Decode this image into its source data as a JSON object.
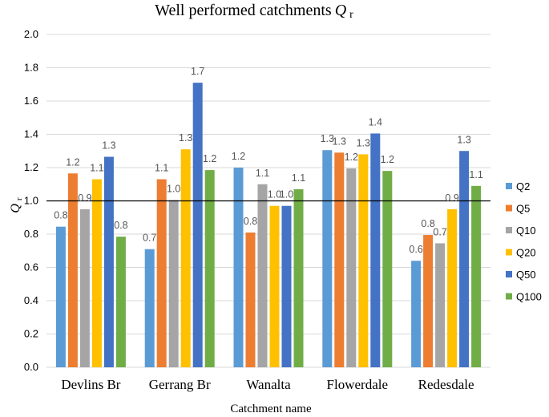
{
  "chart_data": {
    "type": "bar",
    "title": "Well performed catchments",
    "title_symbol": "Q",
    "title_symbol_sub": "r",
    "xlabel": "Catchment name",
    "ylabel": "Q",
    "ylabel_sub": "r",
    "ylim": [
      0,
      2.0
    ],
    "ytick_labels": [
      "0.0",
      "0.2",
      "0.4",
      "0.6",
      "0.8",
      "1.0",
      "1.2",
      "1.4",
      "1.6",
      "1.8",
      "2.0"
    ],
    "yticks": [
      0,
      0.2,
      0.4,
      0.6,
      0.8,
      1.0,
      1.2,
      1.4,
      1.6,
      1.8,
      2.0
    ],
    "reference_line": 1.0,
    "grid": true,
    "legend_position": "right",
    "categories": [
      "Devlins Br",
      "Gerrang Br",
      "Wanalta",
      "Flowerdale",
      "Redesdale"
    ],
    "series": [
      {
        "name": "Q2",
        "color": "#5b9bd5",
        "values": [
          0.845,
          0.71,
          1.2,
          1.305,
          0.64
        ],
        "labels": [
          "0.8",
          "0.7",
          "1.2",
          "1.3",
          "0.6"
        ]
      },
      {
        "name": "Q5",
        "color": "#ed7d31",
        "values": [
          1.165,
          1.13,
          0.81,
          1.29,
          0.795
        ],
        "labels": [
          "1.2",
          "1.1",
          "0.8",
          "1.3",
          "0.8"
        ]
      },
      {
        "name": "Q10",
        "color": "#a5a5a5",
        "values": [
          0.95,
          1.005,
          1.1,
          1.195,
          0.745
        ],
        "labels": [
          "0.9",
          "1.0",
          "1.1",
          "1.2",
          "0.7"
        ]
      },
      {
        "name": "Q20",
        "color": "#ffc000",
        "values": [
          1.13,
          1.31,
          0.97,
          1.28,
          0.95
        ],
        "labels": [
          "1.1",
          "1.3",
          "1.0",
          "1.3",
          "0.9"
        ]
      },
      {
        "name": "Q50",
        "color": "#4472c4",
        "values": [
          1.265,
          1.71,
          0.97,
          1.405,
          1.3
        ],
        "labels": [
          "1.3",
          "1.7",
          "1.0",
          "1.4",
          "1.3"
        ]
      },
      {
        "name": "Q100",
        "color": "#70ad47",
        "values": [
          0.785,
          1.185,
          1.07,
          1.18,
          1.09
        ],
        "labels": [
          "0.8",
          "1.2",
          "1.1",
          "1.2",
          "1.1"
        ]
      }
    ]
  }
}
